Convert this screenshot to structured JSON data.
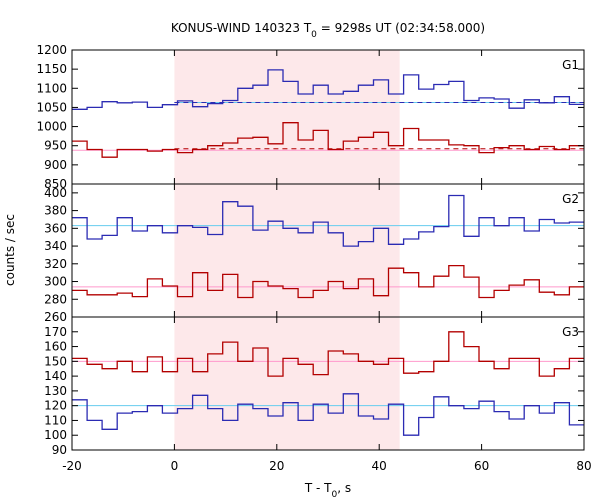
{
  "chart_data": {
    "type": "line",
    "title": "KONUS-WIND 140323 T₀ = 9298s UT (02:34:58.000)",
    "title_parts": {
      "pre": "KONUS-WIND 140323 T",
      "sub": "0",
      "post": " = 9298s UT (02:34:58.000)"
    },
    "xlabel": "T - T₀, s",
    "xlabel_parts": {
      "pre": "T - T",
      "sub": "0",
      "post": ", s"
    },
    "ylabel": "counts / sec",
    "xlim": [
      -20,
      80
    ],
    "x_ticks": [
      -20,
      0,
      20,
      40,
      60,
      80
    ],
    "shaded_interval": [
      0,
      44
    ],
    "grid": false,
    "colors": {
      "blue": "#2b2bb3",
      "red": "#b30000",
      "fit_blue": "#66ccee",
      "fit_red": "#ff99cc",
      "shade": "#fde8ea"
    },
    "bin_width": 2.944,
    "x_start": -20,
    "panels": [
      {
        "label": "G1",
        "ylim": [
          850,
          1200
        ],
        "y_ticks": [
          850,
          900,
          950,
          1000,
          1050,
          1100,
          1150,
          1200
        ],
        "series": [
          {
            "color": "blue",
            "fit_level": 1063,
            "fit_x": [
              0,
              80
            ],
            "dashed_level": 1063,
            "values": [
              1045,
              1050,
              1065,
              1062,
              1064,
              1050,
              1057,
              1067,
              1052,
              1060,
              1068,
              1100,
              1108,
              1148,
              1118,
              1085,
              1108,
              1085,
              1092,
              1108,
              1122,
              1085,
              1135,
              1098,
              1110,
              1118,
              1068,
              1075,
              1072,
              1048,
              1070,
              1062,
              1078,
              1058,
              1082,
              1060,
              1088,
              1062,
              1050
            ]
          },
          {
            "color": "red",
            "fit_level": 938,
            "fit_x": [
              -20,
              80
            ],
            "dashed_level": 942,
            "values": [
              962,
              940,
              920,
              940,
              940,
              936,
              940,
              932,
              940,
              950,
              957,
              970,
              972,
              955,
              1010,
              965,
              990,
              940,
              962,
              972,
              985,
              950,
              995,
              965,
              965,
              952,
              950,
              932,
              945,
              950,
              940,
              948,
              940,
              950,
              948,
              930,
              932,
              945,
              950,
              962
            ]
          }
        ]
      },
      {
        "label": "G2",
        "ylim": [
          260,
          410
        ],
        "y_ticks": [
          260,
          280,
          300,
          320,
          340,
          360,
          380,
          400
        ],
        "series": [
          {
            "color": "blue",
            "fit_level": 363,
            "fit_x": [
              -20,
              80
            ],
            "dashed_level": null,
            "values": [
              372,
              348,
              352,
              372,
              357,
              363,
              355,
              363,
              361,
              353,
              390,
              385,
              358,
              368,
              360,
              355,
              367,
              355,
              340,
              345,
              360,
              342,
              348,
              356,
              362,
              397,
              351,
              372,
              363,
              372,
              357,
              370,
              366,
              367,
              357,
              362,
              355,
              368,
              362
            ]
          },
          {
            "color": "red",
            "fit_level": 294,
            "fit_x": [
              -20,
              80
            ],
            "dashed_level": null,
            "values": [
              290,
              285,
              285,
              287,
              283,
              303,
              295,
              283,
              310,
              290,
              308,
              282,
              300,
              295,
              292,
              282,
              290,
              300,
              292,
              303,
              284,
              315,
              310,
              294,
              306,
              318,
              305,
              282,
              290,
              296,
              302,
              288,
              285,
              294,
              287,
              280,
              282,
              283,
              315
            ]
          }
        ]
      },
      {
        "label": "G3",
        "ylim": [
          90,
          180
        ],
        "y_ticks": [
          90,
          100,
          110,
          120,
          130,
          140,
          150,
          160,
          170
        ],
        "series": [
          {
            "color": "red",
            "fit_level": 150,
            "fit_x": [
              -20,
              80
            ],
            "dashed_level": null,
            "values": [
              152,
              148,
              145,
              150,
              143,
              153,
              143,
              152,
              143,
              155,
              163,
              150,
              159,
              140,
              152,
              148,
              141,
              157,
              155,
              150,
              148,
              152,
              142,
              143,
              150,
              170,
              160,
              150,
              145,
              152,
              152,
              140,
              145,
              152,
              150,
              143,
              157,
              157,
              150
            ]
          },
          {
            "color": "blue",
            "fit_level": 120,
            "fit_x": [
              -20,
              80
            ],
            "dashed_level": null,
            "values": [
              124,
              110,
              104,
              115,
              116,
              120,
              115,
              118,
              127,
              118,
              110,
              121,
              118,
              113,
              122,
              110,
              121,
              115,
              128,
              113,
              111,
              121,
              100,
              112,
              126,
              120,
              118,
              123,
              116,
              111,
              120,
              115,
              122,
              107,
              118,
              120,
              118,
              125,
              113
            ]
          }
        ]
      }
    ]
  }
}
